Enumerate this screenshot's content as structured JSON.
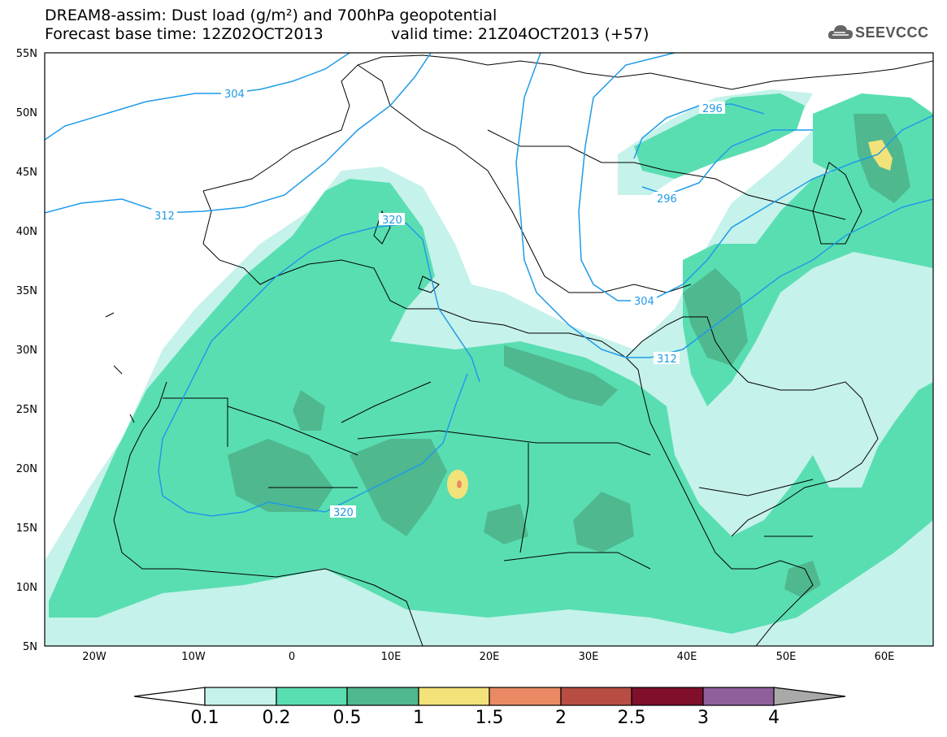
{
  "header": {
    "title_line1": "DREAM8-assim: Dust load (g/m²) and 700hPa geopotential",
    "title_line2_left": "Forecast base time: 12Z02OCT2013",
    "title_line2_right": "valid time: 21Z04OCT2013 (+57)"
  },
  "logo": {
    "text": "SEEVCCC",
    "icon": "cloud-icon"
  },
  "axes": {
    "lat_labels": [
      "55N",
      "50N",
      "45N",
      "40N",
      "35N",
      "30N",
      "25N",
      "20N",
      "15N",
      "10N",
      "5N"
    ],
    "lon_labels": [
      "20W",
      "10W",
      "0",
      "10E",
      "20E",
      "30E",
      "40E",
      "50E",
      "60E"
    ]
  },
  "contours": {
    "labels": [
      "304",
      "296",
      "296",
      "312",
      "320",
      "304",
      "312",
      "320"
    ]
  },
  "colorbar": {
    "levels": [
      "0.1",
      "0.2",
      "0.5",
      "1",
      "1.5",
      "2",
      "2.5",
      "3",
      "4"
    ],
    "colors": [
      "#c5f2ea",
      "#59deb2",
      "#4fb88f",
      "#f2e27a",
      "#e98a65",
      "#b84d43",
      "#7f0f2b",
      "#8e5f9a",
      "#a9a9a9"
    ]
  },
  "colors": {
    "contour": "#1f9be8",
    "coast": "#000000"
  }
}
